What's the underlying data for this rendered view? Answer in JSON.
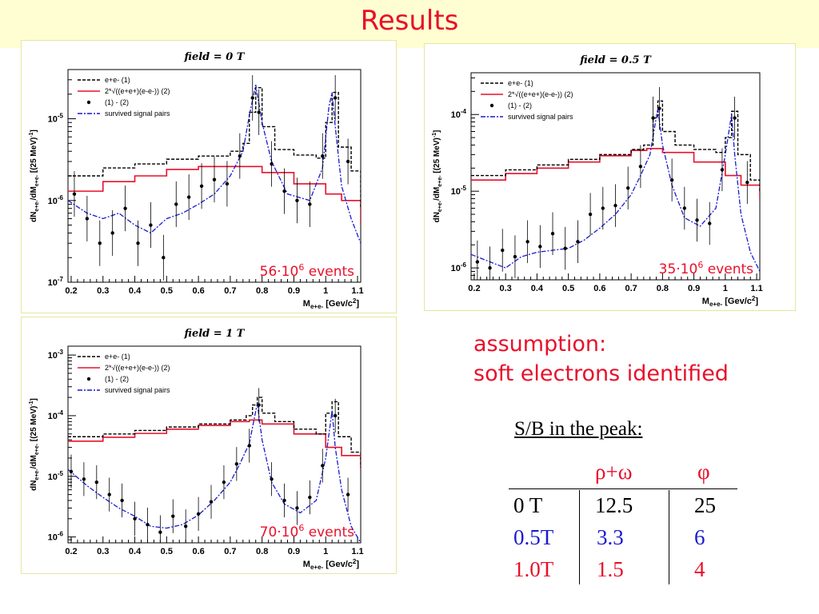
{
  "slide": {
    "title": "Results"
  },
  "note": {
    "line1": "assumption:",
    "line2": "soft electrons identified"
  },
  "sb_table": {
    "heading": "S/B in the peak:",
    "columns": [
      "",
      "ρ+ω",
      "φ"
    ],
    "rows": [
      {
        "field": "0 T",
        "rho_omega": "12.5",
        "phi": "25",
        "color": "#000000"
      },
      {
        "field": "0.5T",
        "rho_omega": "3.3",
        "phi": "6",
        "color": "#1a1ad0"
      },
      {
        "field": "1.0T",
        "rho_omega": "1.5",
        "phi": "4",
        "color": "#e8102a"
      }
    ]
  },
  "colors": {
    "title": "#e8102a",
    "combined_bg": "#e8102a",
    "signal": "#1a1ad0",
    "ee": "#000000",
    "points": "#000000"
  },
  "chart_data": [
    {
      "type": "line",
      "title": "field = 0 T",
      "xlabel": "M_{e+e-} [Gev/c²]",
      "ylabel": "dN_{e+e-}/dM_{e+e-} [(25 MeV)^-1]",
      "log_y": true,
      "xlim": [
        0.19,
        1.11
      ],
      "ylim": [
        1e-07,
        4e-05
      ],
      "x_ticks": [
        "0.2",
        "0.3",
        "0.4",
        "0.5",
        "0.6",
        "0.7",
        "0.8",
        "0.9",
        "1",
        "1.1"
      ],
      "y_ticks": [
        {
          "label": "10",
          "exp": "-7",
          "v": 1e-07
        },
        {
          "label": "10",
          "exp": "-6",
          "v": 1e-06
        },
        {
          "label": "10",
          "exp": "-5",
          "v": 1e-05
        }
      ],
      "legend": [
        "e+e- (1)",
        "2*√((e+e+)(e-e-)) (2)",
        "(1) - (2)",
        "survived signal pairs"
      ],
      "events_label": {
        "mantissa": "56·10",
        "exp": "6",
        "suffix": " events"
      },
      "series": {
        "ee": {
          "x": [
            0.19,
            0.3,
            0.4,
            0.5,
            0.6,
            0.7,
            0.74,
            0.76,
            0.78,
            0.8,
            0.84,
            0.9,
            0.97,
            1.0,
            1.02,
            1.04,
            1.08,
            1.11
          ],
          "y": [
            2e-06,
            2.5e-06,
            2.8e-06,
            3.2e-06,
            3.5e-06,
            4e-06,
            5e-06,
            1.2e-05,
            2.4e-05,
            8e-06,
            4.2e-06,
            3.6e-06,
            3.3e-06,
            9e-06,
            2.1e-05,
            4.5e-06,
            2.3e-06,
            8e-07
          ]
        },
        "combined_bg": {
          "x": [
            0.19,
            0.3,
            0.4,
            0.5,
            0.6,
            0.7,
            0.8,
            0.9,
            1.0,
            1.05,
            1.11
          ],
          "y": [
            1.3e-06,
            1.7e-06,
            2e-06,
            2.4e-06,
            2.6e-06,
            2.6e-06,
            2.2e-06,
            1.6e-06,
            1.2e-06,
            1e-06,
            5e-07
          ]
        },
        "signal": {
          "x": [
            0.19,
            0.25,
            0.3,
            0.35,
            0.4,
            0.45,
            0.5,
            0.55,
            0.6,
            0.65,
            0.7,
            0.74,
            0.76,
            0.78,
            0.8,
            0.83,
            0.88,
            0.95,
            0.99,
            1.01,
            1.02,
            1.03,
            1.05,
            1.08,
            1.11
          ],
          "y": [
            1e-06,
            7e-07,
            6e-07,
            7e-07,
            5e-07,
            4e-07,
            6e-07,
            7e-07,
            9e-07,
            1.2e-06,
            2e-06,
            4e-06,
            1.1e-05,
            2.6e-05,
            9e-06,
            3e-06,
            1.2e-06,
            1e-06,
            2.5e-06,
            1.4e-05,
            2.1e-05,
            8e-06,
            1.5e-06,
            6e-07,
            3e-07
          ]
        },
        "difference": {
          "x": [
            0.21,
            0.25,
            0.29,
            0.33,
            0.37,
            0.41,
            0.45,
            0.49,
            0.53,
            0.57,
            0.61,
            0.65,
            0.69,
            0.73,
            0.77,
            0.79,
            0.83,
            0.87,
            0.91,
            0.95,
            0.99,
            1.03,
            1.07
          ],
          "y": [
            1.2e-06,
            6e-07,
            3e-07,
            4e-07,
            8e-07,
            3e-07,
            5e-07,
            2e-07,
            9e-07,
            1.1e-06,
            1.5e-06,
            1.8e-06,
            1.6e-06,
            3.5e-06,
            1.8e-05,
            1.2e-05,
            2.8e-06,
            1.3e-06,
            1e-06,
            9e-07,
            3.5e-06,
            1.8e-05,
            3e-06
          ]
        }
      }
    },
    {
      "type": "line",
      "title": "field = 0.5 T",
      "xlabel": "M_{e+e-} [Gev/c²]",
      "ylabel": "dN_{e+e-}/dM_{e+e-} [(25 MeV)^-1]",
      "log_y": true,
      "xlim": [
        0.19,
        1.11
      ],
      "ylim": [
        7e-07,
        0.00035
      ],
      "x_ticks": [
        "0.2",
        "0.3",
        "0.4",
        "0.5",
        "0.6",
        "0.7",
        "0.8",
        "0.9",
        "1",
        "1.1"
      ],
      "y_ticks": [
        {
          "label": "10",
          "exp": "-6",
          "v": 1e-06
        },
        {
          "label": "10",
          "exp": "-5",
          "v": 1e-05
        },
        {
          "label": "10",
          "exp": "-4",
          "v": 0.0001
        }
      ],
      "legend": [
        "e+e- (1)",
        "2*√((e+e+)(e-e-)) (2)",
        "(1) - (2)",
        "survived signal pairs"
      ],
      "events_label": {
        "mantissa": "35·10",
        "exp": "6",
        "suffix": " events"
      },
      "series": {
        "ee": {
          "x": [
            0.19,
            0.3,
            0.4,
            0.5,
            0.6,
            0.7,
            0.74,
            0.77,
            0.785,
            0.8,
            0.84,
            0.9,
            0.97,
            1.0,
            1.02,
            1.04,
            1.08,
            1.11
          ],
          "y": [
            1.6e-05,
            1.9e-05,
            2.2e-05,
            2.6e-05,
            3e-05,
            3.5e-05,
            4e-05,
            9e-05,
            0.00015,
            6e-05,
            4e-05,
            3.5e-05,
            3.2e-05,
            5e-05,
            0.00011,
            3e-05,
            1.4e-05,
            1e-05
          ]
        },
        "combined_bg": {
          "x": [
            0.19,
            0.3,
            0.4,
            0.5,
            0.6,
            0.7,
            0.75,
            0.8,
            0.9,
            1.0,
            1.05,
            1.11
          ],
          "y": [
            1.4e-05,
            1.7e-05,
            2e-05,
            2.4e-05,
            2.9e-05,
            3.4e-05,
            3.6e-05,
            3.2e-05,
            2.4e-05,
            1.6e-05,
            1.2e-05,
            8e-06
          ]
        },
        "signal": {
          "x": [
            0.19,
            0.25,
            0.3,
            0.35,
            0.4,
            0.45,
            0.5,
            0.55,
            0.6,
            0.65,
            0.7,
            0.73,
            0.76,
            0.785,
            0.8,
            0.83,
            0.87,
            0.92,
            0.97,
            1.0,
            1.02,
            1.03,
            1.05,
            1.08,
            1.11
          ],
          "y": [
            1.5e-06,
            1.2e-06,
            1e-06,
            1.4e-06,
            1.6e-06,
            1.7e-06,
            1.8e-06,
            2.3e-06,
            3.3e-06,
            5e-06,
            9e-06,
            1.6e-05,
            3e-05,
            0.00012,
            4e-05,
            1.2e-05,
            4.5e-06,
            3.5e-06,
            6e-06,
            3e-05,
            0.0001,
            3e-05,
            5e-06,
            1.6e-06,
            9e-07
          ]
        },
        "difference": {
          "x": [
            0.21,
            0.25,
            0.29,
            0.33,
            0.37,
            0.41,
            0.45,
            0.49,
            0.53,
            0.57,
            0.61,
            0.65,
            0.69,
            0.73,
            0.77,
            0.79,
            0.83,
            0.87,
            0.91,
            0.95,
            0.99,
            1.03,
            1.07
          ],
          "y": [
            1.2e-06,
            1e-06,
            1.7e-06,
            1.4e-06,
            2.2e-06,
            1.9e-06,
            2.8e-06,
            1.8e-06,
            2.2e-06,
            5e-06,
            6e-06,
            6.5e-06,
            1.1e-05,
            2.1e-05,
            9e-05,
            0.00012,
            1.4e-05,
            6e-06,
            4.2e-06,
            3.8e-06,
            1.9e-05,
            9e-05,
            1.3e-05
          ]
        }
      }
    },
    {
      "type": "line",
      "title": "field = 1 T",
      "xlabel": "M_{e+e-} [Gev/c²]",
      "ylabel": "dN_{e+e-}/dM_{e+e-} [(25 MeV)^-1]",
      "log_y": true,
      "xlim": [
        0.19,
        1.11
      ],
      "ylim": [
        8e-07,
        0.0014
      ],
      "x_ticks": [
        "0.2",
        "0.3",
        "0.4",
        "0.5",
        "0.6",
        "0.7",
        "0.8",
        "0.9",
        "1",
        "1.1"
      ],
      "y_ticks": [
        {
          "label": "10",
          "exp": "-6",
          "v": 1e-06
        },
        {
          "label": "10",
          "exp": "-5",
          "v": 1e-05
        },
        {
          "label": "10",
          "exp": "-4",
          "v": 0.0001
        },
        {
          "label": "10",
          "exp": "-3",
          "v": 0.001
        }
      ],
      "legend": [
        "e+e- (1)",
        "2*√((e+e+)(e-e-)) (2)",
        "(1) - (2)",
        "survived signal pairs"
      ],
      "events_label": {
        "mantissa": "70·10",
        "exp": "6",
        "suffix": " events"
      },
      "series": {
        "ee": {
          "x": [
            0.19,
            0.3,
            0.4,
            0.5,
            0.6,
            0.7,
            0.75,
            0.77,
            0.785,
            0.8,
            0.84,
            0.9,
            0.97,
            1.0,
            1.02,
            1.04,
            1.08,
            1.11
          ],
          "y": [
            4.5e-05,
            5e-05,
            5.7e-05,
            6.5e-05,
            7.3e-05,
            8.5e-05,
            0.0001,
            0.00015,
            0.0002,
            0.00011,
            8e-05,
            6e-05,
            5e-05,
            0.00011,
            0.00017,
            4.5e-05,
            2.5e-05,
            1.4e-05
          ]
        },
        "combined_bg": {
          "x": [
            0.19,
            0.3,
            0.4,
            0.5,
            0.6,
            0.7,
            0.76,
            0.8,
            0.9,
            1.0,
            1.05,
            1.11
          ],
          "y": [
            3.8e-05,
            4.4e-05,
            5.1e-05,
            6e-05,
            6.9e-05,
            8e-05,
            8.5e-05,
            7.3e-05,
            5e-05,
            3e-05,
            2.2e-05,
            1.3e-05
          ]
        },
        "signal": {
          "x": [
            0.19,
            0.25,
            0.3,
            0.35,
            0.4,
            0.45,
            0.5,
            0.55,
            0.6,
            0.65,
            0.7,
            0.73,
            0.76,
            0.785,
            0.8,
            0.83,
            0.87,
            0.92,
            0.97,
            1.0,
            1.02,
            1.03,
            1.05,
            1.08,
            1.11
          ],
          "y": [
            1.3e-05,
            7e-06,
            4.5e-06,
            3e-06,
            2.2e-06,
            1.5e-06,
            1.4e-06,
            1.6e-06,
            2.3e-06,
            4e-06,
            8e-06,
            1.6e-05,
            3.5e-05,
            0.00016,
            4e-05,
            8e-06,
            3.5e-06,
            2.5e-06,
            4e-06,
            2e-05,
            0.00012,
            3e-05,
            6e-06,
            1.5e-06,
            8e-07
          ]
        },
        "difference": {
          "x": [
            0.2,
            0.24,
            0.28,
            0.32,
            0.36,
            0.4,
            0.44,
            0.48,
            0.52,
            0.56,
            0.6,
            0.64,
            0.68,
            0.72,
            0.76,
            0.79,
            0.83,
            0.87,
            0.91,
            0.95,
            0.99,
            1.03,
            1.07
          ],
          "y": [
            1.2e-05,
            9e-06,
            8e-06,
            5e-06,
            4e-06,
            2e-06,
            1.6e-06,
            1.2e-06,
            2.2e-06,
            1.5e-06,
            2.4e-06,
            3.8e-06,
            8e-06,
            1.6e-05,
            3.2e-05,
            0.00015,
            9e-06,
            4e-06,
            3e-06,
            4.5e-06,
            1.5e-05,
            0.0001,
            5e-06
          ]
        }
      }
    }
  ]
}
